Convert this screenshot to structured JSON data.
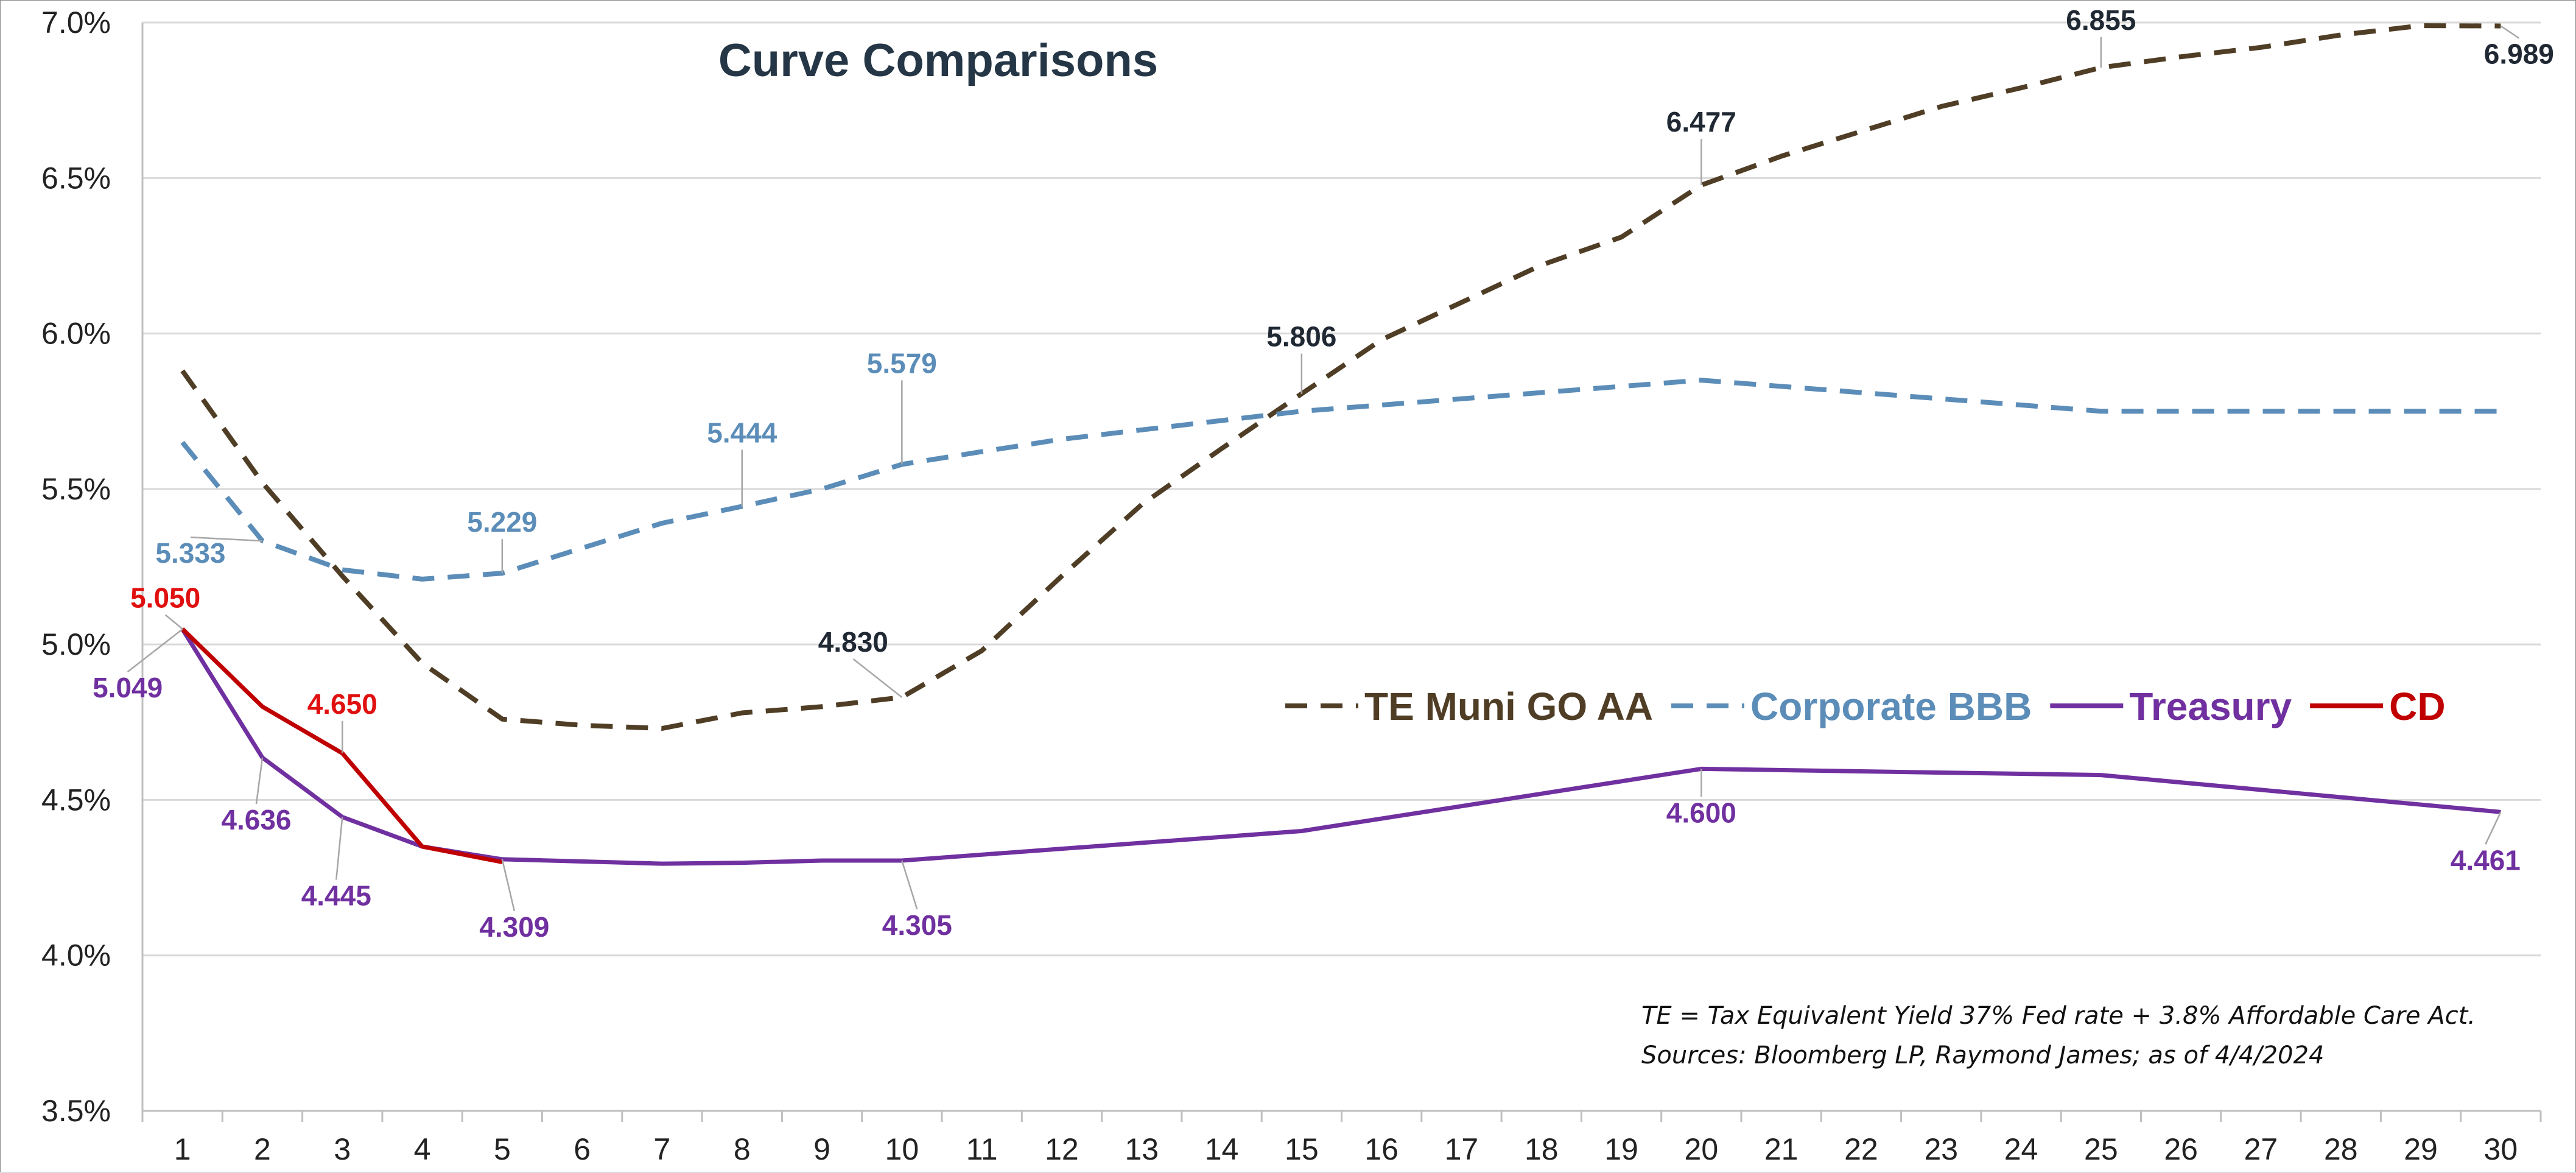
{
  "chart_data": {
    "type": "line",
    "title": "Curve Comparisons",
    "xlabel": "",
    "ylabel": "",
    "x": [
      1,
      2,
      3,
      4,
      5,
      6,
      7,
      8,
      9,
      10,
      11,
      12,
      13,
      14,
      15,
      16,
      17,
      18,
      19,
      20,
      21,
      22,
      23,
      24,
      25,
      26,
      27,
      28,
      29,
      30
    ],
    "xlim": [
      0.5,
      30.5
    ],
    "ylim": [
      3.5,
      7.0
    ],
    "y_ticks": [
      3.5,
      4.0,
      4.5,
      5.0,
      5.5,
      6.0,
      6.5,
      7.0
    ],
    "y_tick_labels": [
      "3.5%",
      "4.0%",
      "4.5%",
      "5.0%",
      "5.5%",
      "6.0%",
      "6.5%",
      "7.0%"
    ],
    "grid": "horizontal",
    "legend_position": "center-right",
    "series": [
      {
        "name": "TE Muni GO AA",
        "color": "#4F3E25",
        "dash": "dashed",
        "x": [
          1,
          2,
          3,
          4,
          5,
          6,
          7,
          8,
          9,
          10,
          11,
          12,
          13,
          14,
          15,
          16,
          17,
          18,
          19,
          20,
          21,
          22,
          23,
          24,
          25,
          26,
          27,
          28,
          29,
          30
        ],
        "values": [
          5.88,
          5.52,
          5.22,
          4.94,
          4.76,
          4.74,
          4.73,
          4.78,
          4.8,
          4.83,
          4.98,
          5.22,
          5.45,
          5.63,
          5.806,
          5.98,
          6.1,
          6.22,
          6.31,
          6.477,
          6.57,
          6.65,
          6.73,
          6.79,
          6.855,
          6.89,
          6.92,
          6.96,
          6.99,
          6.989
        ],
        "labels": [
          {
            "x": 10,
            "text": "4.830"
          },
          {
            "x": 15,
            "text": "5.806"
          },
          {
            "x": 20,
            "text": "6.477"
          },
          {
            "x": 25,
            "text": "6.855"
          },
          {
            "x": 30,
            "text": "6.989"
          }
        ]
      },
      {
        "name": "Corporate BBB",
        "color": "#5B8DB8",
        "dash": "dashed",
        "x": [
          1,
          2,
          3,
          4,
          5,
          6,
          7,
          8,
          9,
          10,
          11,
          12,
          13,
          14,
          15,
          16,
          17,
          18,
          19,
          20,
          21,
          22,
          23,
          24,
          25,
          26,
          27,
          28,
          29,
          30
        ],
        "values": [
          5.65,
          5.333,
          5.24,
          5.21,
          5.229,
          5.31,
          5.39,
          5.444,
          5.5,
          5.579,
          5.62,
          5.66,
          5.69,
          5.72,
          5.75,
          5.77,
          5.79,
          5.81,
          5.83,
          5.85,
          5.83,
          5.81,
          5.79,
          5.77,
          5.75,
          5.75,
          5.75,
          5.75,
          5.75,
          5.75
        ],
        "labels": [
          {
            "x": 2,
            "text": "5.333"
          },
          {
            "x": 5,
            "text": "5.229"
          },
          {
            "x": 8,
            "text": "5.444"
          },
          {
            "x": 10,
            "text": "5.579"
          }
        ]
      },
      {
        "name": "Treasury",
        "color": "#7030A0",
        "dash": "solid",
        "x": [
          1,
          2,
          3,
          4,
          5,
          7,
          8,
          9,
          10,
          15,
          20,
          25,
          30
        ],
        "values": [
          5.049,
          4.636,
          4.445,
          4.35,
          4.309,
          4.295,
          4.298,
          4.305,
          4.305,
          4.4,
          4.6,
          4.58,
          4.461
        ],
        "labels": [
          {
            "x": 1,
            "text": "5.049"
          },
          {
            "x": 2,
            "text": "4.636"
          },
          {
            "x": 3,
            "text": "4.445"
          },
          {
            "x": 5,
            "text": "4.309"
          },
          {
            "x": 10,
            "text": "4.305"
          },
          {
            "x": 20,
            "text": "4.600"
          },
          {
            "x": 30,
            "text": "4.461"
          }
        ]
      },
      {
        "name": "CD",
        "color": "#C00000",
        "dash": "solid",
        "x": [
          1,
          2,
          3,
          4,
          5
        ],
        "values": [
          5.05,
          4.8,
          4.65,
          4.35,
          4.3
        ],
        "labels": [
          {
            "x": 1,
            "text": "5.050"
          },
          {
            "x": 3,
            "text": "4.650"
          }
        ]
      }
    ],
    "annotations": [
      "TE = Tax Equivalent Yield 37%  Fed rate + 3.8% Affordable Care Act.",
      "Sources: Bloomberg LP, Raymond James; as of  4/4/2024"
    ]
  }
}
